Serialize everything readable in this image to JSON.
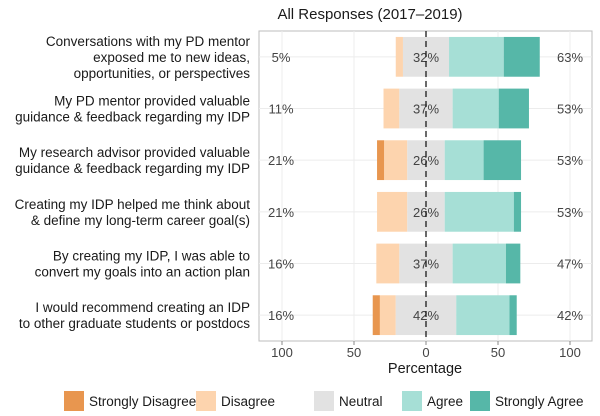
{
  "chart_data": {
    "type": "bar",
    "subtype": "diverging-stacked",
    "title": "All Responses (2017–2019)",
    "xlabel": "Percentage",
    "ylabel": "",
    "xlim": [
      -100,
      100
    ],
    "xticks": [
      -100,
      -50,
      0,
      50,
      100
    ],
    "xtick_labels": [
      "100",
      "50",
      "0",
      "50",
      "100"
    ],
    "grid": true,
    "legend_position": "bottom",
    "levels": [
      "Strongly Disagree",
      "Disagree",
      "Neutral",
      "Agree",
      "Strongly Agree"
    ],
    "colors": [
      "#e8964f",
      "#fdd4ae",
      "#e2e2e2",
      "#a6dfd6",
      "#56b7a8"
    ],
    "categories": [
      [
        "Conversations with my PD mentor",
        "exposed me to new ideas,",
        "opportunities, or perspectives"
      ],
      [
        "My PD mentor provided valuable",
        "guidance & feedback regarding my IDP"
      ],
      [
        "My research advisor provided valuable",
        "guidance & feedback regarding my IDP"
      ],
      [
        "Creating my IDP helped me think about",
        "& define my long-term career goal(s)"
      ],
      [
        "By creating my IDP, I was able to",
        "convert my goals into an action plan"
      ],
      [
        "I would recommend creating an IDP",
        "to other graduate students or postdocs"
      ]
    ],
    "series": [
      {
        "name": "Strongly Disagree",
        "values": [
          0,
          0,
          5,
          0,
          0,
          5
        ]
      },
      {
        "name": "Disagree",
        "values": [
          5,
          11,
          16,
          21,
          16,
          11
        ]
      },
      {
        "name": "Neutral",
        "values": [
          32,
          37,
          26,
          26,
          37,
          42
        ]
      },
      {
        "name": "Agree",
        "values": [
          38,
          32,
          27,
          48,
          37,
          37
        ]
      },
      {
        "name": "Strongly Agree",
        "values": [
          25,
          21,
          26,
          5,
          10,
          5
        ]
      }
    ],
    "left_labels": [
      "5%",
      "11%",
      "21%",
      "21%",
      "16%",
      "16%"
    ],
    "center_labels": [
      "32%",
      "37%",
      "26%",
      "26%",
      "37%",
      "42%"
    ],
    "right_labels": [
      "63%",
      "53%",
      "53%",
      "53%",
      "47%",
      "42%"
    ]
  }
}
